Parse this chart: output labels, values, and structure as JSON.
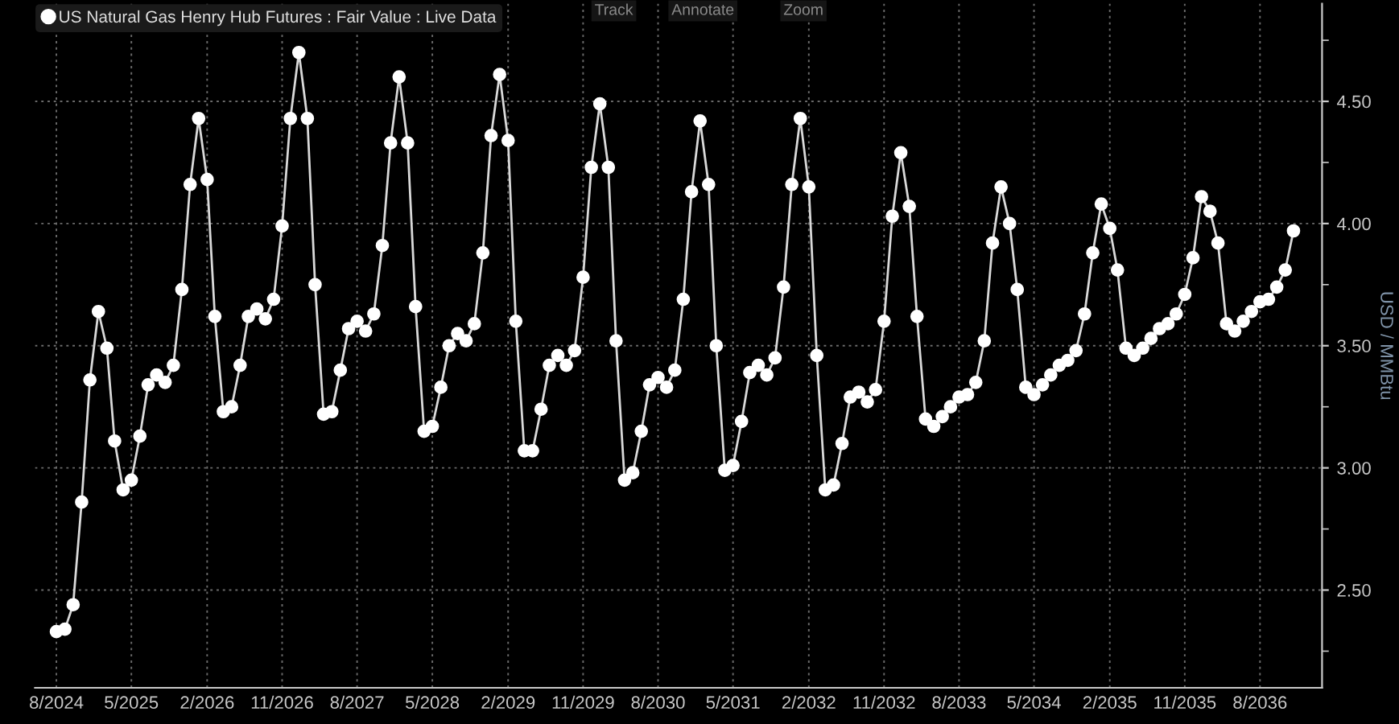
{
  "chart_data": {
    "type": "line",
    "x": [
      "2024-08",
      "2024-09",
      "2024-10",
      "2024-11",
      "2024-12",
      "2025-01",
      "2025-02",
      "2025-03",
      "2025-04",
      "2025-05",
      "2025-06",
      "2025-07",
      "2025-08",
      "2025-09",
      "2025-10",
      "2025-11",
      "2025-12",
      "2026-01",
      "2026-02",
      "2026-03",
      "2026-04",
      "2026-05",
      "2026-06",
      "2026-07",
      "2026-08",
      "2026-09",
      "2026-10",
      "2026-11",
      "2026-12",
      "2027-01",
      "2027-02",
      "2027-03",
      "2027-04",
      "2027-05",
      "2027-06",
      "2027-07",
      "2027-08",
      "2027-09",
      "2027-10",
      "2027-11",
      "2027-12",
      "2028-01",
      "2028-02",
      "2028-03",
      "2028-04",
      "2028-05",
      "2028-06",
      "2028-07",
      "2028-08",
      "2028-09",
      "2028-10",
      "2028-11",
      "2028-12",
      "2029-01",
      "2029-02",
      "2029-03",
      "2029-04",
      "2029-05",
      "2029-06",
      "2029-07",
      "2029-08",
      "2029-09",
      "2029-10",
      "2029-11",
      "2029-12",
      "2030-01",
      "2030-02",
      "2030-03",
      "2030-04",
      "2030-05",
      "2030-06",
      "2030-07",
      "2030-08",
      "2030-09",
      "2030-10",
      "2030-11",
      "2030-12",
      "2031-01",
      "2031-02",
      "2031-03",
      "2031-04",
      "2031-05",
      "2031-06",
      "2031-07",
      "2031-08",
      "2031-09",
      "2031-10",
      "2031-11",
      "2031-12",
      "2032-01",
      "2032-02",
      "2032-03",
      "2032-04",
      "2032-05",
      "2032-06",
      "2032-07",
      "2032-08",
      "2032-09",
      "2032-10",
      "2032-11",
      "2032-12",
      "2033-01",
      "2033-02",
      "2033-03",
      "2033-04",
      "2033-05",
      "2033-06",
      "2033-07",
      "2033-08",
      "2033-09",
      "2033-10",
      "2033-11",
      "2033-12",
      "2034-01",
      "2034-02",
      "2034-03",
      "2034-04",
      "2034-05",
      "2034-06",
      "2034-07",
      "2034-08",
      "2034-09",
      "2034-10",
      "2034-11",
      "2034-12",
      "2035-01",
      "2035-02",
      "2035-03",
      "2035-04",
      "2035-05",
      "2035-06",
      "2035-07",
      "2035-08",
      "2035-09",
      "2035-10",
      "2035-11",
      "2035-12",
      "2036-01",
      "2036-02",
      "2036-03",
      "2036-04",
      "2036-05",
      "2036-06",
      "2036-07",
      "2036-08",
      "2036-09",
      "2036-10",
      "2036-11",
      "2036-12"
    ],
    "series": [
      {
        "name": "US Natural Gas Henry Hub Futures : Fair Value : Live Data",
        "color": "#d9d9d9",
        "values": [
          2.33,
          2.34,
          2.44,
          2.86,
          3.36,
          3.64,
          3.49,
          3.11,
          2.91,
          2.95,
          3.13,
          3.34,
          3.38,
          3.35,
          3.42,
          3.73,
          4.16,
          4.43,
          4.18,
          3.62,
          3.23,
          3.25,
          3.42,
          3.62,
          3.65,
          3.61,
          3.69,
          3.99,
          4.43,
          4.7,
          4.43,
          3.75,
          3.22,
          3.23,
          3.4,
          3.57,
          3.6,
          3.56,
          3.63,
          3.91,
          4.33,
          4.6,
          4.33,
          3.66,
          3.15,
          3.17,
          3.33,
          3.5,
          3.55,
          3.52,
          3.59,
          3.88,
          4.36,
          4.61,
          4.34,
          3.6,
          3.07,
          3.07,
          3.24,
          3.42,
          3.46,
          3.42,
          3.48,
          3.78,
          4.23,
          4.49,
          4.23,
          3.52,
          2.95,
          2.98,
          3.15,
          3.34,
          3.37,
          3.33,
          3.4,
          3.69,
          4.13,
          4.42,
          4.16,
          3.5,
          2.99,
          3.01,
          3.19,
          3.39,
          3.42,
          3.38,
          3.45,
          3.74,
          4.16,
          4.43,
          4.15,
          3.46,
          2.91,
          2.93,
          3.1,
          3.29,
          3.31,
          3.27,
          3.32,
          3.6,
          4.03,
          4.29,
          4.07,
          3.62,
          3.2,
          3.17,
          3.21,
          3.25,
          3.29,
          3.3,
          3.35,
          3.52,
          3.92,
          4.15,
          4.0,
          3.73,
          3.33,
          3.3,
          3.34,
          3.38,
          3.42,
          3.44,
          3.48,
          3.63,
          3.88,
          4.08,
          3.98,
          3.81,
          3.49,
          3.46,
          3.49,
          3.53,
          3.57,
          3.59,
          3.63,
          3.71,
          3.86,
          4.11,
          4.05,
          3.92,
          3.59,
          3.56,
          3.6,
          3.64,
          3.68,
          3.69,
          3.74,
          3.81,
          3.97
        ]
      }
    ],
    "marker": "circle",
    "line_style": "solid",
    "grid": true,
    "legend": "top left",
    "ylabel": "USD / MMBtu",
    "xlim": [
      "2024-05-15",
      "2037-03-15"
    ],
    "xticks": [
      {
        "value": "2024-08",
        "label": "8/2024"
      },
      {
        "value": "2025-05",
        "label": "5/2025"
      },
      {
        "value": "2026-02",
        "label": "2/2026"
      },
      {
        "value": "2026-11",
        "label": "11/2026"
      },
      {
        "value": "2027-08",
        "label": "8/2027"
      },
      {
        "value": "2028-05",
        "label": "5/2028"
      },
      {
        "value": "2029-02",
        "label": "2/2029"
      },
      {
        "value": "2029-11",
        "label": "11/2029"
      },
      {
        "value": "2030-08",
        "label": "8/2030"
      },
      {
        "value": "2031-05",
        "label": "5/2031"
      },
      {
        "value": "2032-02",
        "label": "2/2032"
      },
      {
        "value": "2032-11",
        "label": "11/2032"
      },
      {
        "value": "2033-08",
        "label": "8/2033"
      },
      {
        "value": "2034-05",
        "label": "5/2034"
      },
      {
        "value": "2035-02",
        "label": "2/2035"
      },
      {
        "value": "2035-11",
        "label": "11/2035"
      },
      {
        "value": "2036-08",
        "label": "8/2036"
      }
    ],
    "ylim": [
      2.1,
      4.9
    ],
    "yticks": [
      {
        "value": 2.25,
        "label": null
      },
      {
        "value": 2.5,
        "label": "2.50"
      },
      {
        "value": 2.75,
        "label": null
      },
      {
        "value": 3.0,
        "label": "3.00"
      },
      {
        "value": 3.25,
        "label": null
      },
      {
        "value": 3.5,
        "label": "3.50"
      },
      {
        "value": 3.75,
        "label": null
      },
      {
        "value": 4.0,
        "label": "4.00"
      },
      {
        "value": 4.25,
        "label": null
      },
      {
        "value": 4.5,
        "label": "4.50"
      },
      {
        "value": 4.75,
        "label": null
      }
    ],
    "annotations": [
      "Track",
      "Annotate",
      "Zoom"
    ]
  }
}
